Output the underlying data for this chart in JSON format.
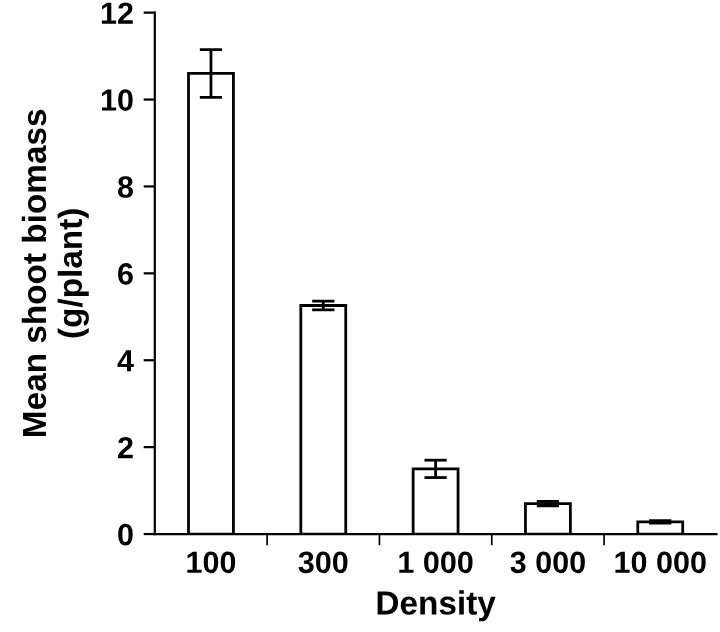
{
  "chart_data": {
    "type": "bar",
    "xlabel": "Density",
    "ylabel": "Mean shoot biomass\n(g/plant)",
    "categories": [
      "100",
      "300",
      "1 000",
      "3 000",
      "10 000"
    ],
    "values": [
      10.6,
      5.26,
      1.5,
      0.7,
      0.28
    ],
    "errors": [
      0.55,
      0.1,
      0.2,
      0.05,
      0.03
    ],
    "color": "#ffffff",
    "ylim": [
      0,
      12
    ],
    "yticks": [
      0,
      2,
      4,
      6,
      8,
      10,
      12
    ],
    "grid": false,
    "legend": false
  }
}
